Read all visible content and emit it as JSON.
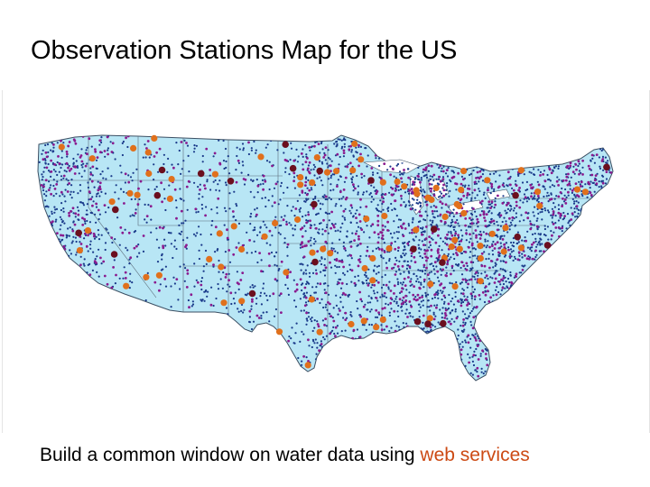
{
  "slide": {
    "title": "Observation Stations Map for the US",
    "caption_lead": "Build a common window on water data using ",
    "caption_link": "web services"
  },
  "map": {
    "region": "Contiguous United States",
    "land_color": "#b8e6f5",
    "boundary_color": "#5a6a78",
    "station_layers": [
      {
        "id": "blue-network",
        "color": "#1a3a8a",
        "symbol": "dense-dots"
      },
      {
        "id": "purple-network",
        "color": "#8a1a8e",
        "symbol": "dots"
      },
      {
        "id": "orange-network",
        "color": "#e0701c",
        "symbol": "large-dots"
      },
      {
        "id": "maroon-network",
        "color": "#6b0f1e",
        "symbol": "large-dots"
      }
    ]
  },
  "colors": {
    "title_text": "#000000",
    "caption_text": "#000000",
    "caption_highlight": "#cc4a14"
  }
}
